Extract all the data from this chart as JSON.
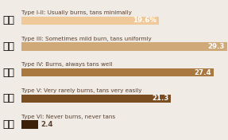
{
  "categories": [
    "Type I-II: Usually burns, tans minimally",
    "Type III: Sometimes mild burn, tans uniformly",
    "Type IV: Burns, always tans well",
    "Type V: Very rarely burns, tans very easily",
    "Type VI: Never burns, never tans"
  ],
  "values": [
    19.6,
    29.3,
    27.4,
    21.3,
    2.4
  ],
  "value_labels": [
    "19.6%",
    "29.3",
    "27.4",
    "21.3",
    "2.4"
  ],
  "bar_colors": [
    "#f0c99a",
    "#cfaa78",
    "#a97840",
    "#7a4e20",
    "#3d2008"
  ],
  "emojis": [
    "👏🏻",
    "👏🏼",
    "👏🏽",
    "👏🏾",
    "👏🏿"
  ],
  "background_color": "#f0ebe4",
  "text_color": "#5a4030",
  "label_fontsize": 5.2,
  "value_fontsize": 6.2,
  "emoji_fontsize": 9,
  "xlim": [
    0,
    31
  ]
}
